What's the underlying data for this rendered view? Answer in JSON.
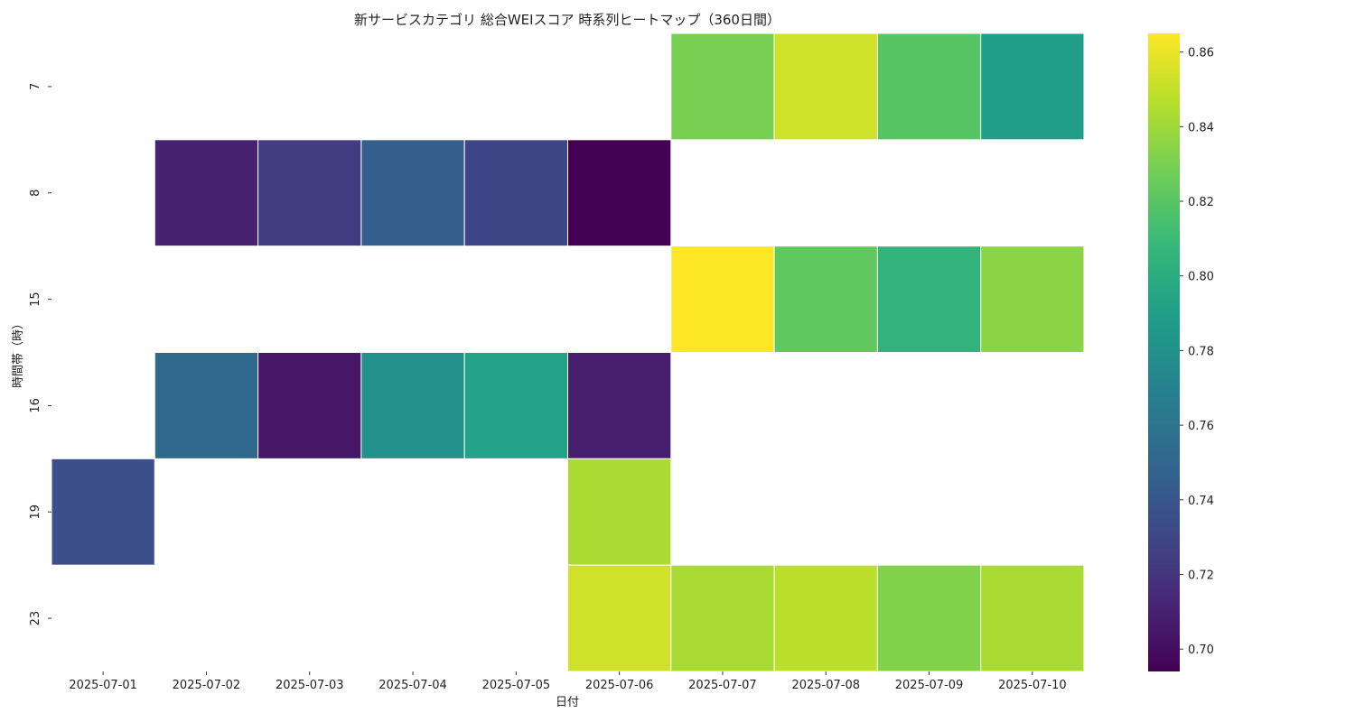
{
  "chart_data": {
    "type": "heatmap",
    "title": "新サービスカテゴリ 総合WEIスコア 時系列ヒートマップ（360日間）",
    "xlabel": "日付",
    "ylabel": "時間帯（時）",
    "x_categories": [
      "2025-07-01",
      "2025-07-02",
      "2025-07-03",
      "2025-07-04",
      "2025-07-05",
      "2025-07-06",
      "2025-07-07",
      "2025-07-08",
      "2025-07-09",
      "2025-07-10"
    ],
    "y_categories": [
      "7",
      "8",
      "15",
      "16",
      "19",
      "23"
    ],
    "values": [
      [
        null,
        null,
        null,
        null,
        null,
        null,
        0.83,
        0.853,
        0.82,
        0.79
      ],
      [
        null,
        0.71,
        0.724,
        0.745,
        0.73,
        0.694,
        null,
        null,
        null,
        null
      ],
      [
        null,
        null,
        null,
        null,
        null,
        null,
        0.865,
        0.823,
        0.805,
        0.835
      ],
      [
        null,
        0.752,
        0.704,
        0.78,
        0.792,
        0.708,
        null,
        null,
        null,
        null
      ],
      [
        0.735,
        null,
        null,
        null,
        null,
        0.843,
        null,
        null,
        null,
        null
      ],
      [
        null,
        null,
        null,
        null,
        null,
        0.853,
        0.843,
        0.848,
        0.833,
        0.843
      ]
    ],
    "colormap": "viridis",
    "vmin": 0.694,
    "vmax": 0.865,
    "colorbar_ticks": [
      0.7,
      0.72,
      0.74,
      0.76,
      0.78,
      0.8,
      0.82,
      0.84,
      0.86
    ],
    "colorbar_tick_labels": [
      "0.70",
      "0.72",
      "0.74",
      "0.76",
      "0.78",
      "0.80",
      "0.82",
      "0.84",
      "0.86"
    ],
    "grid": false,
    "cell_border_color": "#ffffff"
  }
}
